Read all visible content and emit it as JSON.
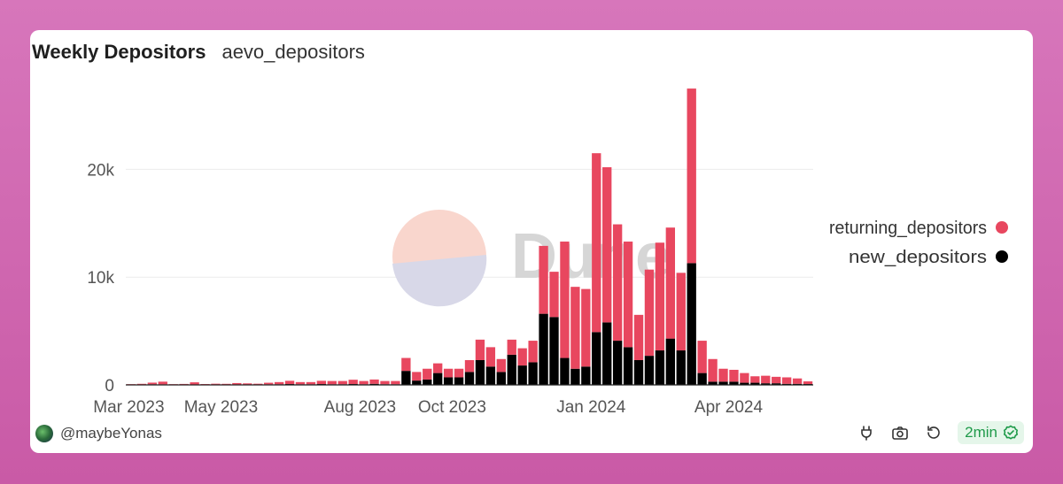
{
  "header": {
    "title": "Weekly Depositors",
    "subtitle": "aevo_depositors"
  },
  "footer": {
    "username": "@maybeYonas",
    "refresh_badge": "2min"
  },
  "icons": [
    "avatar",
    "plug-icon",
    "camera-icon",
    "refresh-icon",
    "check-circle-icon"
  ],
  "watermark": "Dune",
  "colors": {
    "returning": "#e8475f",
    "new": "#000000",
    "badge_text": "#1f9a4a",
    "badge_bg": "#e5f6ea"
  },
  "chart_data": {
    "type": "bar",
    "stacked": true,
    "x_start": "2023-02-27",
    "x_interval": "week",
    "x_ticks": [
      "Mar 2023",
      "May 2023",
      "Aug 2023",
      "Oct 2023",
      "Jan 2024",
      "Apr 2024"
    ],
    "y_ticks": [
      0,
      10000,
      20000
    ],
    "y_tick_labels": [
      "0",
      "10k",
      "20k"
    ],
    "ylim": [
      0,
      28000
    ],
    "grid": true,
    "legend_position": "right",
    "series": [
      {
        "name": "new_depositors",
        "color": "#000000",
        "values": [
          20,
          20,
          60,
          50,
          30,
          40,
          40,
          20,
          30,
          20,
          20,
          40,
          30,
          50,
          60,
          80,
          60,
          60,
          80,
          60,
          60,
          80,
          60,
          100,
          60,
          60,
          1300,
          400,
          500,
          1100,
          700,
          700,
          1200,
          2300,
          1700,
          1200,
          2800,
          1800,
          2100,
          6600,
          6300,
          2500,
          1500,
          1700,
          4900,
          5800,
          4100,
          3500,
          2300,
          2700,
          3200,
          4300,
          3200,
          11300,
          1100,
          300,
          300,
          300,
          200,
          200,
          150,
          150,
          100,
          100,
          80
        ]
      },
      {
        "name": "returning_depositors",
        "color": "#e8475f",
        "values": [
          50,
          80,
          150,
          250,
          40,
          50,
          200,
          60,
          80,
          80,
          150,
          100,
          80,
          150,
          200,
          300,
          200,
          200,
          300,
          300,
          300,
          400,
          300,
          400,
          300,
          300,
          1200,
          800,
          1000,
          900,
          800,
          800,
          1100,
          1900,
          1800,
          1200,
          1400,
          1600,
          2000,
          6300,
          4200,
          10800,
          7600,
          7200,
          16600,
          14400,
          10800,
          9800,
          4200,
          8000,
          10000,
          10300,
          7200,
          16200,
          3000,
          2100,
          1200,
          1100,
          900,
          600,
          700,
          600,
          600,
          500,
          250
        ]
      }
    ]
  }
}
